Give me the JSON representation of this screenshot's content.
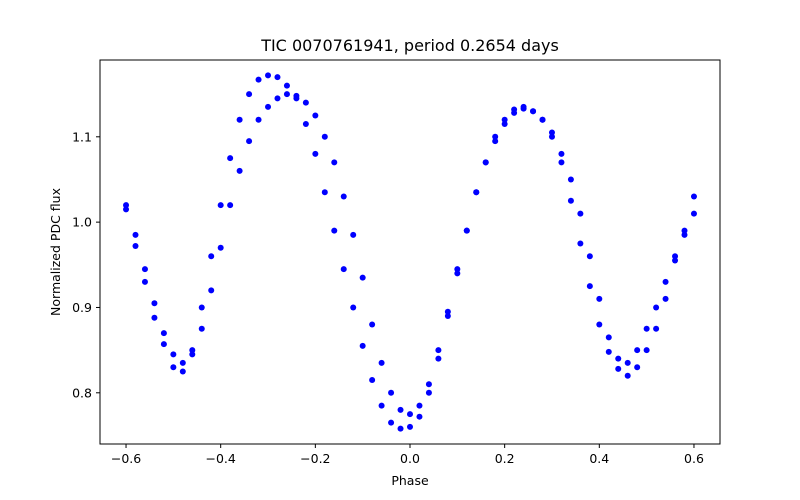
{
  "chart_data": {
    "type": "scatter",
    "title": "TIC 0070761941, period 0.2654 days",
    "xlabel": "Phase",
    "ylabel": "Normalized PDC flux",
    "xlim": [
      -0.655,
      0.655
    ],
    "ylim": [
      0.74,
      1.19
    ],
    "xticks": [
      -0.6,
      -0.4,
      -0.2,
      0.0,
      0.2,
      0.4,
      0.6
    ],
    "xtick_labels": [
      "−0.6",
      "−0.4",
      "−0.2",
      "0.0",
      "0.2",
      "0.4",
      "0.6"
    ],
    "yticks": [
      0.8,
      0.9,
      1.0,
      1.1
    ],
    "ytick_labels": [
      "0.8",
      "0.9",
      "1.0",
      "1.1"
    ],
    "grid": false,
    "legend": "none",
    "marker_color": "#0000ff",
    "series": [
      {
        "x": [
          -0.6,
          -0.58,
          -0.56,
          -0.54,
          -0.52,
          -0.5,
          -0.48,
          -0.46,
          -0.44,
          -0.42,
          -0.4,
          -0.38,
          -0.36,
          -0.34,
          -0.32,
          -0.3,
          -0.28,
          -0.26,
          -0.24,
          -0.22,
          -0.2,
          -0.18,
          -0.16,
          -0.14,
          -0.12,
          -0.1,
          -0.08,
          -0.06,
          -0.04,
          -0.02,
          0.0,
          0.02,
          0.04,
          0.06,
          0.08,
          0.1,
          0.12,
          0.14,
          0.16,
          0.18,
          0.2,
          0.22,
          0.24,
          0.26,
          0.28,
          0.3,
          0.32,
          0.34,
          0.36,
          0.38,
          0.4,
          0.42,
          0.44,
          0.46,
          0.48,
          0.5,
          0.52,
          0.54,
          0.56,
          0.58,
          0.6
        ],
        "y": [
          1.015,
          0.972,
          0.93,
          0.888,
          0.857,
          0.83,
          0.825,
          0.85,
          0.9,
          0.96,
          1.02,
          1.075,
          1.12,
          1.15,
          1.167,
          1.172,
          1.17,
          1.16,
          1.145,
          1.115,
          1.08,
          1.035,
          0.99,
          0.945,
          0.9,
          0.855,
          0.815,
          0.785,
          0.765,
          0.758,
          0.76,
          0.772,
          0.8,
          0.84,
          0.89,
          0.94,
          0.99,
          1.035,
          1.07,
          1.1,
          1.12,
          1.132,
          1.135,
          1.13,
          1.12,
          1.1,
          1.07,
          1.025,
          0.975,
          0.925,
          0.88,
          0.848,
          0.828,
          0.82,
          0.83,
          0.85,
          0.875,
          0.91,
          0.955,
          0.99,
          1.03
        ]
      },
      {
        "x": [
          -0.6,
          -0.58,
          -0.56,
          -0.54,
          -0.52,
          -0.5,
          -0.48,
          -0.46,
          -0.44,
          -0.42,
          -0.4,
          -0.38,
          -0.36,
          -0.34,
          -0.32,
          -0.3,
          -0.28,
          -0.26,
          -0.24,
          -0.22,
          -0.2,
          -0.18,
          -0.16,
          -0.14,
          -0.12,
          -0.1,
          -0.08,
          -0.06,
          -0.04,
          -0.02,
          0.0,
          0.02,
          0.04,
          0.06,
          0.08,
          0.1,
          0.12,
          0.14,
          0.16,
          0.18,
          0.2,
          0.22,
          0.24,
          0.26,
          0.28,
          0.3,
          0.32,
          0.34,
          0.36,
          0.38,
          0.4,
          0.42,
          0.44,
          0.46,
          0.48,
          0.5,
          0.52,
          0.54,
          0.56,
          0.58,
          0.6
        ],
        "y": [
          1.02,
          0.985,
          0.945,
          0.905,
          0.87,
          0.845,
          0.835,
          0.845,
          0.875,
          0.92,
          0.97,
          1.02,
          1.06,
          1.095,
          1.12,
          1.135,
          1.145,
          1.15,
          1.148,
          1.14,
          1.125,
          1.1,
          1.07,
          1.03,
          0.985,
          0.935,
          0.88,
          0.835,
          0.8,
          0.78,
          0.775,
          0.785,
          0.81,
          0.85,
          0.895,
          0.945,
          0.99,
          1.035,
          1.07,
          1.095,
          1.115,
          1.128,
          1.133,
          1.13,
          1.12,
          1.105,
          1.08,
          1.05,
          1.01,
          0.96,
          0.91,
          0.865,
          0.84,
          0.835,
          0.85,
          0.875,
          0.9,
          0.93,
          0.96,
          0.985,
          1.01
        ]
      }
    ]
  }
}
